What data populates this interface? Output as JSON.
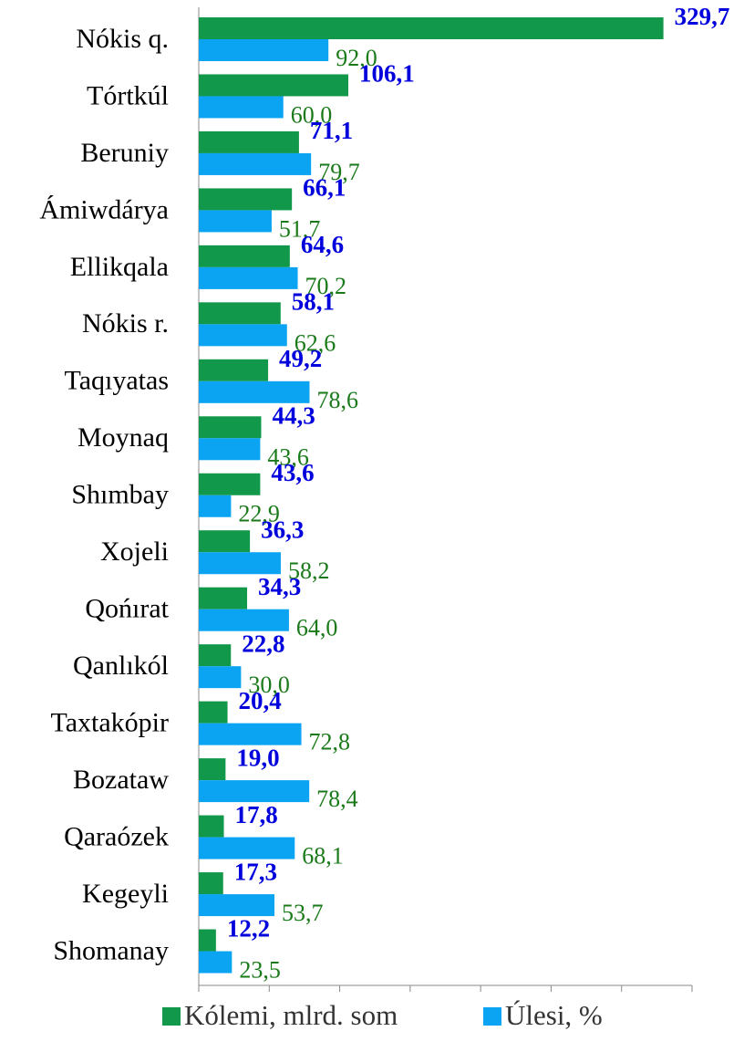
{
  "chart_data": {
    "type": "hbar",
    "categories": [
      "Nókis q.",
      "Tórtkúl",
      "Beruniy",
      "Ámiwdárya",
      "Ellikqala",
      "Nókis r.",
      "Taqıyatas",
      "Moynaq",
      "Shımbay",
      "Xojeli",
      "Qońırat",
      "Qanlıkól",
      "Taxtakópir",
      "Bozataw",
      "Qaraózek",
      "Kegeyli",
      "Shomanay"
    ],
    "series": [
      {
        "name": "Kólemi, mlrd. som",
        "color": "#12984a",
        "label_color": "#0000dd",
        "values": [
          329.7,
          106.1,
          71.1,
          66.1,
          64.6,
          58.1,
          49.2,
          44.3,
          43.6,
          36.3,
          34.3,
          22.8,
          20.4,
          19.0,
          17.8,
          17.3,
          12.2
        ],
        "value_labels": [
          "329,7",
          "106,1",
          "71,1",
          "66,1",
          "64,6",
          "58,1",
          "49,2",
          "44,3",
          "43,6",
          "36,3",
          "34,3",
          "22,8",
          "20,4",
          "19,0",
          "17,8",
          "17,3",
          "12,2"
        ]
      },
      {
        "name": "Úlesi, %",
        "color": "#0ba4f2",
        "label_color": "#1a7a1a",
        "values": [
          92.0,
          60.0,
          79.7,
          51.7,
          70.2,
          62.6,
          78.6,
          43.6,
          22.9,
          58.2,
          64.0,
          30.0,
          72.8,
          78.4,
          68.1,
          53.7,
          23.5
        ],
        "value_labels": [
          "92,0",
          "60,0",
          "79,7",
          "51,7",
          "70,2",
          "62,6",
          "78,6",
          "43,6",
          "22,9",
          "58,2",
          "64,0",
          "30,0",
          "72,8",
          "78,4",
          "68,1",
          "53,7",
          "23,5"
        ]
      }
    ],
    "xlim": [
      0,
      350
    ],
    "xticks": [
      0,
      50,
      100,
      150,
      200,
      250,
      300,
      350
    ],
    "legend": "bottom"
  }
}
